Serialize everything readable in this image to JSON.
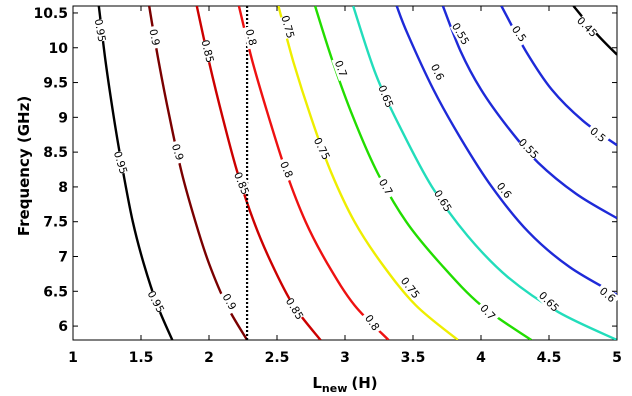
{
  "chart_data": {
    "type": "contour",
    "xlabel": {
      "main": "L",
      "subscript": "new",
      "unit": "(H)"
    },
    "ylabel": "Frequency (GHz)",
    "xlim": [
      1,
      5
    ],
    "ylim": [
      5.8,
      10.6
    ],
    "x_ticks": [
      "1",
      "1.5",
      "2",
      "2.5",
      "3",
      "3.5",
      "4",
      "4.5",
      "5"
    ],
    "y_ticks": [
      "6",
      "6.5",
      "7",
      "7.5",
      "8",
      "8.5",
      "9",
      "9.5",
      "10",
      "10.5"
    ],
    "grid": false,
    "marker_line": {
      "x": 2.28,
      "style": "dotted",
      "color": "#000000"
    },
    "contours": [
      {
        "level": "0.95",
        "color": "#000000",
        "points": [
          [
            1.73,
            5.8
          ],
          [
            1.62,
            6.3
          ],
          [
            1.52,
            6.9
          ],
          [
            1.44,
            7.5
          ],
          [
            1.37,
            8.2
          ],
          [
            1.3,
            9.0
          ],
          [
            1.24,
            9.8
          ],
          [
            1.19,
            10.6
          ]
        ],
        "labels": [
          {
            "text": "0.95",
            "x": 1.61,
            "y": 6.35,
            "rot": 62
          },
          {
            "text": "0.95",
            "x": 1.35,
            "y": 8.35,
            "rot": 73
          },
          {
            "text": "0.95",
            "x": 1.2,
            "y": 10.25,
            "rot": 80
          }
        ]
      },
      {
        "level": "0.9",
        "color": "#7a0000",
        "points": [
          [
            2.28,
            5.8
          ],
          [
            2.13,
            6.3
          ],
          [
            2.0,
            6.9
          ],
          [
            1.9,
            7.5
          ],
          [
            1.8,
            8.2
          ],
          [
            1.71,
            9.0
          ],
          [
            1.63,
            9.8
          ],
          [
            1.56,
            10.6
          ]
        ],
        "labels": [
          {
            "text": "0.9",
            "x": 2.15,
            "y": 6.35,
            "rot": 60
          },
          {
            "text": "0.9",
            "x": 1.77,
            "y": 8.5,
            "rot": 72
          },
          {
            "text": "0.9",
            "x": 1.6,
            "y": 10.15,
            "rot": 78
          }
        ]
      },
      {
        "level": "0.85",
        "color": "#cc0000",
        "points": [
          [
            2.82,
            5.8
          ],
          [
            2.62,
            6.3
          ],
          [
            2.46,
            6.9
          ],
          [
            2.33,
            7.5
          ],
          [
            2.21,
            8.2
          ],
          [
            2.1,
            9.0
          ],
          [
            2.0,
            9.8
          ],
          [
            1.91,
            10.6
          ]
        ],
        "labels": [
          {
            "text": "0.85",
            "x": 2.63,
            "y": 6.25,
            "rot": 58
          },
          {
            "text": "0.85",
            "x": 2.24,
            "y": 8.05,
            "rot": 68
          },
          {
            "text": "0.85",
            "x": 1.99,
            "y": 9.95,
            "rot": 76
          }
        ]
      },
      {
        "level": "0.8",
        "color": "#ee1111",
        "points": [
          [
            3.32,
            5.8
          ],
          [
            3.07,
            6.3
          ],
          [
            2.87,
            6.9
          ],
          [
            2.71,
            7.5
          ],
          [
            2.57,
            8.2
          ],
          [
            2.44,
            9.0
          ],
          [
            2.32,
            9.8
          ],
          [
            2.22,
            10.6
          ]
        ],
        "labels": [
          {
            "text": "0.8",
            "x": 3.2,
            "y": 6.05,
            "rot": 55
          },
          {
            "text": "0.8",
            "x": 2.57,
            "y": 8.25,
            "rot": 66
          },
          {
            "text": "0.8",
            "x": 2.31,
            "y": 10.15,
            "rot": 76
          }
        ]
      },
      {
        "level": "0.75",
        "color": "#eeee00",
        "points": [
          [
            3.83,
            5.8
          ],
          [
            3.52,
            6.3
          ],
          [
            3.27,
            6.9
          ],
          [
            3.07,
            7.5
          ],
          [
            2.9,
            8.2
          ],
          [
            2.75,
            9.0
          ],
          [
            2.62,
            9.8
          ],
          [
            2.51,
            10.6
          ]
        ],
        "labels": [
          {
            "text": "0.75",
            "x": 3.48,
            "y": 6.55,
            "rot": 52
          },
          {
            "text": "0.75",
            "x": 2.83,
            "y": 8.55,
            "rot": 64
          },
          {
            "text": "0.75",
            "x": 2.58,
            "y": 10.3,
            "rot": 74
          }
        ]
      },
      {
        "level": "0.7",
        "color": "#22dd00",
        "points": [
          [
            4.37,
            5.8
          ],
          [
            4.0,
            6.3
          ],
          [
            3.7,
            6.9
          ],
          [
            3.45,
            7.5
          ],
          [
            3.24,
            8.2
          ],
          [
            3.06,
            9.0
          ],
          [
            2.91,
            9.8
          ],
          [
            2.78,
            10.6
          ]
        ],
        "labels": [
          {
            "text": "0.7",
            "x": 4.05,
            "y": 6.2,
            "rot": 48
          },
          {
            "text": "0.7",
            "x": 3.3,
            "y": 8.0,
            "rot": 60
          },
          {
            "text": "0.7",
            "x": 2.97,
            "y": 9.7,
            "rot": 70
          }
        ]
      },
      {
        "level": "0.65",
        "color": "#22ddbb",
        "points": [
          [
            5.0,
            5.8
          ],
          [
            4.57,
            6.2
          ],
          [
            4.2,
            6.7
          ],
          [
            3.9,
            7.3
          ],
          [
            3.64,
            8.0
          ],
          [
            3.42,
            8.8
          ],
          [
            3.23,
            9.6
          ],
          [
            3.06,
            10.6
          ]
        ],
        "labels": [
          {
            "text": "0.65",
            "x": 4.5,
            "y": 6.35,
            "rot": 45
          },
          {
            "text": "0.65",
            "x": 3.72,
            "y": 7.8,
            "rot": 58
          },
          {
            "text": "0.65",
            "x": 3.3,
            "y": 9.3,
            "rot": 68
          }
        ]
      },
      {
        "level": "0.6",
        "color": "#1e2ad8",
        "points": [
          [
            5.0,
            6.45
          ],
          [
            4.65,
            6.85
          ],
          [
            4.35,
            7.35
          ],
          [
            4.08,
            8.0
          ],
          [
            3.85,
            8.7
          ],
          [
            3.65,
            9.4
          ],
          [
            3.46,
            10.2
          ],
          [
            3.38,
            10.6
          ]
        ],
        "labels": [
          {
            "text": "0.6",
            "x": 4.93,
            "y": 6.45,
            "rot": 40
          },
          {
            "text": "0.6",
            "x": 4.17,
            "y": 7.95,
            "rot": 52
          },
          {
            "text": "0.6",
            "x": 3.68,
            "y": 9.65,
            "rot": 64
          }
        ]
      },
      {
        "level": "0.55",
        "color": "#1e2ad8",
        "points": [
          [
            5.0,
            7.55
          ],
          [
            4.7,
            7.9
          ],
          [
            4.42,
            8.35
          ],
          [
            4.2,
            8.85
          ],
          [
            4.0,
            9.4
          ],
          [
            3.85,
            9.95
          ],
          [
            3.72,
            10.6
          ]
        ],
        "labels": [
          {
            "text": "0.55",
            "x": 4.35,
            "y": 8.55,
            "rot": 46
          },
          {
            "text": "0.55",
            "x": 3.85,
            "y": 10.2,
            "rot": 60
          }
        ]
      },
      {
        "level": "0.5",
        "color": "#1e2ad8",
        "points": [
          [
            5.0,
            8.6
          ],
          [
            4.75,
            8.95
          ],
          [
            4.52,
            9.4
          ],
          [
            4.33,
            9.95
          ],
          [
            4.15,
            10.6
          ]
        ],
        "labels": [
          {
            "text": "0.5",
            "x": 4.86,
            "y": 8.75,
            "rot": 40
          },
          {
            "text": "0.5",
            "x": 4.28,
            "y": 10.2,
            "rot": 55
          }
        ]
      },
      {
        "level": "0.45",
        "color": "#000000",
        "points": [
          [
            5.0,
            9.9
          ],
          [
            4.85,
            10.2
          ],
          [
            4.68,
            10.6
          ]
        ],
        "labels": [
          {
            "text": "0.45",
            "x": 4.78,
            "y": 10.3,
            "rot": 45
          }
        ]
      }
    ]
  }
}
